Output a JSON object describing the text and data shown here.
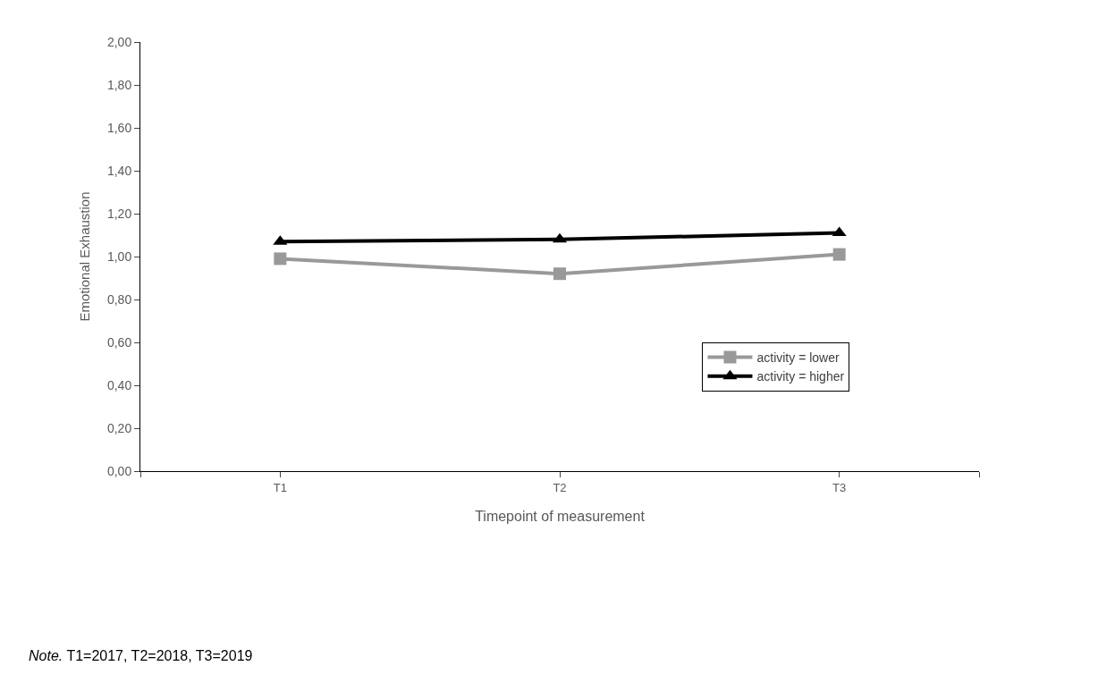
{
  "chart_data": {
    "type": "line",
    "xlabel": "Timepoint of measurement",
    "ylabel": "Emotional Exhaustion",
    "categories": [
      "T1",
      "T2",
      "T3"
    ],
    "series": [
      {
        "name": "activity = lower",
        "color": "#999999",
        "values": [
          0.99,
          0.92,
          1.01
        ],
        "marker": "square"
      },
      {
        "name": "activity = higher",
        "color": "#000000",
        "values": [
          1.07,
          1.08,
          1.11
        ],
        "marker": "triangle"
      }
    ],
    "ylim": [
      0,
      2
    ],
    "yticks": [
      {
        "value": 0,
        "label": "0,00"
      },
      {
        "value": 0.2,
        "label": "0,20"
      },
      {
        "value": 0.4,
        "label": "0,40"
      },
      {
        "value": 0.6,
        "label": "0,60"
      },
      {
        "value": 0.8,
        "label": "0,80"
      },
      {
        "value": 1.0,
        "label": "1,00"
      },
      {
        "value": 1.2,
        "label": "1,20"
      },
      {
        "value": 1.4,
        "label": "1,40"
      },
      {
        "value": 1.6,
        "label": "1,60"
      },
      {
        "value": 1.8,
        "label": "1,80"
      },
      {
        "value": 2.0,
        "label": "2,00"
      }
    ],
    "grid": false,
    "legend": "bottom right",
    "line_style": "solid",
    "annotations": [
      "Note. T1=2017, T2=2018, T3=2019"
    ]
  }
}
